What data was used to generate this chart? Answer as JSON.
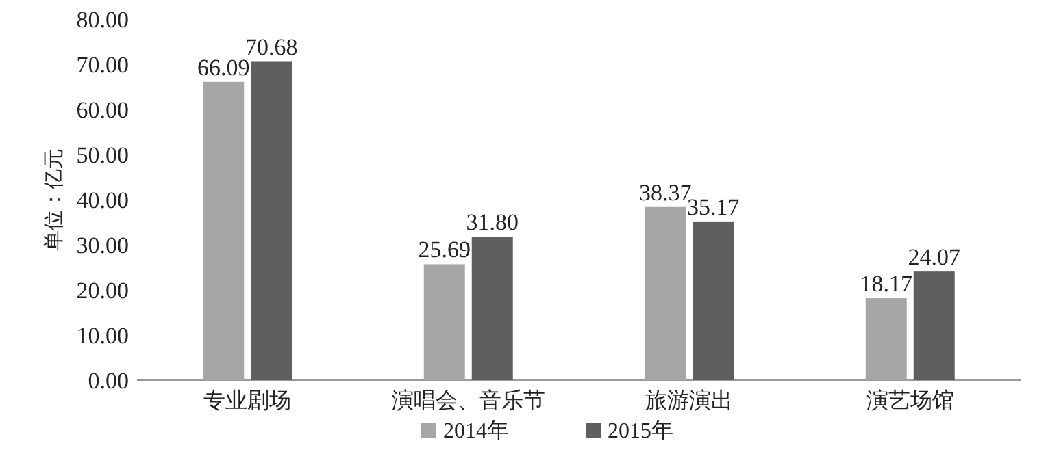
{
  "chart_data": {
    "type": "bar",
    "ylabel": "单位：亿元",
    "categories": [
      "专业剧场",
      "演唱会、音乐节",
      "旅游演出",
      "演艺场馆"
    ],
    "series": [
      {
        "name": "2014年",
        "color": "#a6a6a6",
        "values": [
          66.09,
          25.69,
          38.37,
          18.17
        ],
        "value_labels": [
          "66.09",
          "25.69",
          "38.37",
          "18.17"
        ]
      },
      {
        "name": "2015年",
        "color": "#5f5f5f",
        "values": [
          70.68,
          31.8,
          35.17,
          24.07
        ],
        "value_labels": [
          "70.68",
          "31.80",
          "35.17",
          "24.07"
        ]
      }
    ],
    "ylim": [
      0,
      80
    ],
    "yticks": [
      {
        "value": 0,
        "label": "0.00"
      },
      {
        "value": 10,
        "label": "10.00"
      },
      {
        "value": 20,
        "label": "20.00"
      },
      {
        "value": 30,
        "label": "30.00"
      },
      {
        "value": 40,
        "label": "40.00"
      },
      {
        "value": 50,
        "label": "50.00"
      },
      {
        "value": 60,
        "label": "60.00"
      },
      {
        "value": 70,
        "label": "70.00"
      },
      {
        "value": 80,
        "label": "80.00"
      }
    ],
    "legend": "bottom",
    "grid": false
  }
}
